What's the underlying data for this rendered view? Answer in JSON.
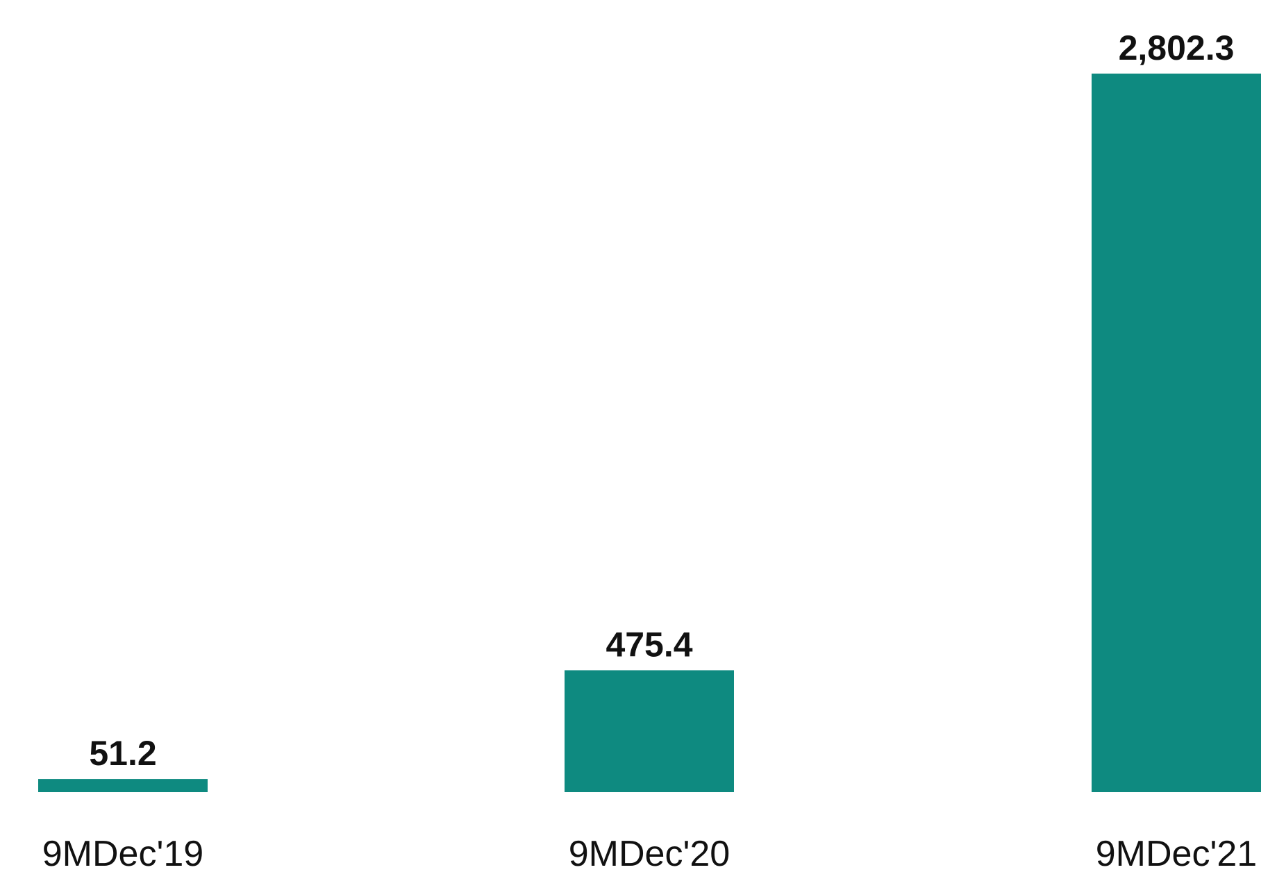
{
  "chart_data": {
    "type": "bar",
    "title": "",
    "xlabel": "",
    "ylabel": "",
    "categories": [
      "9MDec'19",
      "9MDec'20",
      "9MDec'21"
    ],
    "values": [
      51.2,
      475.4,
      2802.3
    ],
    "value_labels": [
      "51.2",
      "475.4",
      "2,802.3"
    ],
    "ylim": [
      0,
      2802.3
    ],
    "grid": false,
    "legend": "none",
    "bar_color": "#0e8a80",
    "label_color": "#111111"
  }
}
